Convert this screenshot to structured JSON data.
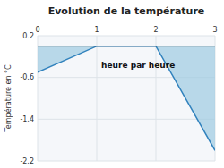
{
  "chart_data": {
    "type": "area",
    "title": "Evolution de la température",
    "y_label": "Température en °C",
    "x": [
      0,
      1,
      2,
      3
    ],
    "values": [
      -0.5,
      0.0,
      0.0,
      -2.0
    ],
    "xlim": [
      0,
      3
    ],
    "xticks": [
      0,
      1,
      2,
      3
    ],
    "ylim": [
      -2.2,
      0.2
    ],
    "yticks": [
      0.2,
      -0.6,
      -1.4,
      -2.2
    ],
    "grid": true,
    "annotations": [
      {
        "text": "heure par heure",
        "x": 1.7,
        "y": -0.38
      }
    ]
  }
}
